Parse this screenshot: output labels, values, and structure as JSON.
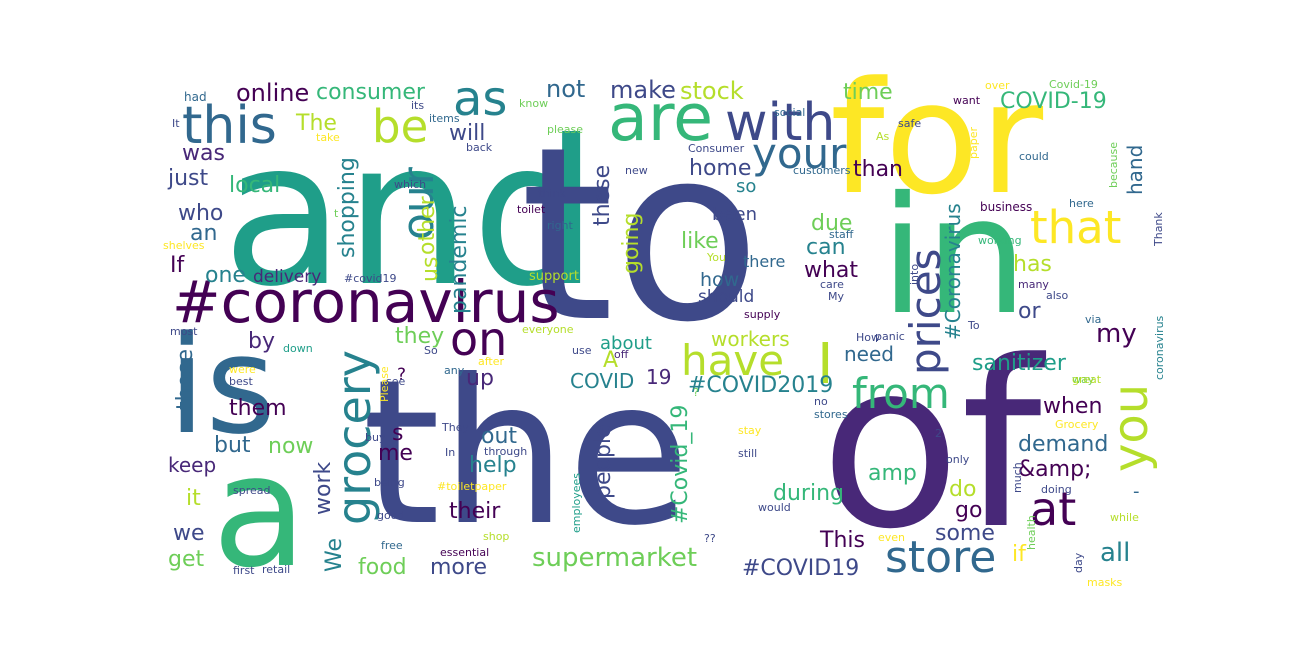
{
  "palette": [
    "#440154",
    "#482878",
    "#3e4989",
    "#31688e",
    "#26828e",
    "#1f9e89",
    "#35b779",
    "#6ece58",
    "#b5de2b",
    "#fde725"
  ],
  "words": [
    {
      "text": "and",
      "color": "#1f9e89"
    },
    {
      "text": "to",
      "color": "#3e4989"
    },
    {
      "text": "for",
      "color": "#fde725"
    },
    {
      "text": "the",
      "color": "#3e4989"
    },
    {
      "text": "of",
      "color": "#482878"
    },
    {
      "text": "in",
      "color": "#35b779"
    },
    {
      "text": "is",
      "color": "#31688e"
    },
    {
      "text": "a",
      "color": "#35b779"
    },
    {
      "text": "#coronavirus",
      "color": "#440154"
    },
    {
      "text": "are",
      "color": "#35b779"
    },
    {
      "text": "this",
      "color": "#31688e"
    },
    {
      "text": "with",
      "color": "#3e4989"
    },
    {
      "text": "as",
      "color": "#26828e"
    },
    {
      "text": "be",
      "color": "#b5de2b"
    },
    {
      "text": "your",
      "color": "#31688e"
    },
    {
      "text": "our",
      "color": "#26828e"
    },
    {
      "text": "that",
      "color": "#fde725"
    },
    {
      "text": "on",
      "color": "#440154"
    },
    {
      "text": "grocery",
      "color": "#26828e"
    },
    {
      "text": "prices",
      "color": "#3e4989"
    },
    {
      "text": "have",
      "color": "#b5de2b"
    },
    {
      "text": "I",
      "color": "#b5de2b"
    },
    {
      "text": "from",
      "color": "#35b779"
    },
    {
      "text": "you",
      "color": "#b5de2b"
    },
    {
      "text": "at",
      "color": "#440154"
    },
    {
      "text": "store",
      "color": "#31688e"
    },
    {
      "text": "online",
      "color": "#440154"
    },
    {
      "text": "consumer",
      "color": "#35b779"
    },
    {
      "text": "not",
      "color": "#31688e"
    },
    {
      "text": "make",
      "color": "#3e4989"
    },
    {
      "text": "stock",
      "color": "#b5de2b"
    },
    {
      "text": "time",
      "color": "#6ece58"
    },
    {
      "text": "COVID-19",
      "color": "#35b779"
    },
    {
      "text": "will",
      "color": "#3e4989"
    },
    {
      "text": "The",
      "color": "#b5de2b"
    },
    {
      "text": "was",
      "color": "#482878"
    },
    {
      "text": "just",
      "color": "#3e4989"
    },
    {
      "text": "local",
      "color": "#35b779"
    },
    {
      "text": "shopping",
      "color": "#26828e"
    },
    {
      "text": "other",
      "color": "#b5de2b"
    },
    {
      "text": "these",
      "color": "#3e4989"
    },
    {
      "text": "home",
      "color": "#3e4989"
    },
    {
      "text": "so",
      "color": "#26828e"
    },
    {
      "text": "than",
      "color": "#440154"
    },
    {
      "text": "#Coronavirus",
      "color": "#26828e"
    },
    {
      "text": "hand",
      "color": "#31688e"
    },
    {
      "text": "who",
      "color": "#3e4989"
    },
    {
      "text": "an",
      "color": "#31688e"
    },
    {
      "text": "pandemic",
      "color": "#26828e"
    },
    {
      "text": "going",
      "color": "#b5de2b"
    },
    {
      "text": "been",
      "color": "#3e4989"
    },
    {
      "text": "like",
      "color": "#6ece58"
    },
    {
      "text": "due",
      "color": "#6ece58"
    },
    {
      "text": "can",
      "color": "#26828e"
    },
    {
      "text": "what",
      "color": "#440154"
    },
    {
      "text": "has",
      "color": "#b5de2b"
    },
    {
      "text": "If",
      "color": "#440154"
    },
    {
      "text": "one",
      "color": "#26828e"
    },
    {
      "text": "delivery",
      "color": "#482878"
    },
    {
      "text": "us",
      "color": "#b5de2b"
    },
    {
      "text": "how",
      "color": "#31688e"
    },
    {
      "text": "there",
      "color": "#31688e"
    },
    {
      "text": "should",
      "color": "#3e4989"
    },
    {
      "text": "or",
      "color": "#3e4989"
    },
    {
      "text": "my",
      "color": "#440154"
    },
    {
      "text": "by",
      "color": "#482878"
    },
    {
      "text": "they",
      "color": "#6ece58"
    },
    {
      "text": "about",
      "color": "#1f9e89"
    },
    {
      "text": "workers",
      "color": "#b5de2b"
    },
    {
      "text": "need",
      "color": "#31688e"
    },
    {
      "text": "sanitizer",
      "color": "#1f9e89"
    },
    {
      "text": "those",
      "color": "#31688e"
    },
    {
      "text": "them",
      "color": "#440154"
    },
    {
      "text": "up",
      "color": "#482878"
    },
    {
      "text": "A",
      "color": "#b5de2b"
    },
    {
      "text": "COVID",
      "color": "#26828e"
    },
    {
      "text": "19",
      "color": "#482878"
    },
    {
      "text": "#COVID2019",
      "color": "#26828e"
    },
    {
      "text": "when",
      "color": "#440154"
    },
    {
      "text": "s",
      "color": "#440154"
    },
    {
      "text": "out",
      "color": "#31688e"
    },
    {
      "text": "but",
      "color": "#31688e"
    },
    {
      "text": "now",
      "color": "#6ece58"
    },
    {
      "text": "me",
      "color": "#440154"
    },
    {
      "text": "help",
      "color": "#26828e"
    },
    {
      "text": "people",
      "color": "#3e4989"
    },
    {
      "text": "#Covid_19",
      "color": "#35b779"
    },
    {
      "text": "demand",
      "color": "#31688e"
    },
    {
      "text": "&amp;",
      "color": "#440154"
    },
    {
      "text": "keep",
      "color": "#482878"
    },
    {
      "text": "amp",
      "color": "#35b779"
    },
    {
      "text": "it",
      "color": "#b5de2b"
    },
    {
      "text": "work",
      "color": "#3e4989"
    },
    {
      "text": "do",
      "color": "#b5de2b"
    },
    {
      "text": "during",
      "color": "#35b779"
    },
    {
      "text": "their",
      "color": "#440154"
    },
    {
      "text": "go",
      "color": "#440154"
    },
    {
      "text": "we",
      "color": "#3e4989"
    },
    {
      "text": "We",
      "color": "#26828e"
    },
    {
      "text": "some",
      "color": "#3e4989"
    },
    {
      "text": "This",
      "color": "#440154"
    },
    {
      "text": "all",
      "color": "#26828e"
    },
    {
      "text": "if",
      "color": "#fde725"
    },
    {
      "text": "get",
      "color": "#6ece58"
    },
    {
      "text": "food",
      "color": "#6ece58"
    },
    {
      "text": "more",
      "color": "#3e4989"
    },
    {
      "text": "supermarket",
      "color": "#6ece58"
    },
    {
      "text": "#COVID19",
      "color": "#3e4989"
    },
    {
      "text": "-",
      "color": "#31688e"
    },
    {
      "text": "?",
      "color": "#440154"
    },
    {
      "text": "had",
      "color": "#31688e"
    },
    {
      "text": "It",
      "color": "#3e4989"
    },
    {
      "text": "its",
      "color": "#3e4989"
    },
    {
      "text": "items",
      "color": "#31688e"
    },
    {
      "text": "take",
      "color": "#fde725"
    },
    {
      "text": "back",
      "color": "#3e4989"
    },
    {
      "text": "please",
      "color": "#6ece58"
    },
    {
      "text": "know",
      "color": "#6ece58"
    },
    {
      "text": "social",
      "color": "#31688e"
    },
    {
      "text": "over",
      "color": "#fde725"
    },
    {
      "text": "Covid-19",
      "color": "#6ece58"
    },
    {
      "text": "want",
      "color": "#440154"
    },
    {
      "text": "safe",
      "color": "#3e4989"
    },
    {
      "text": "As",
      "color": "#b5de2b"
    },
    {
      "text": "Consumer",
      "color": "#3e4989"
    },
    {
      "text": "paper",
      "color": "#fde725"
    },
    {
      "text": "could",
      "color": "#31688e"
    },
    {
      "text": "because",
      "color": "#6ece58"
    },
    {
      "text": "new",
      "color": "#3e4989"
    },
    {
      "text": "customers",
      "color": "#31688e"
    },
    {
      "text": "which",
      "color": "#3e4989"
    },
    {
      "text": "think",
      "color": "#3e4989"
    },
    {
      "text": "toilet",
      "color": "#440154"
    },
    {
      "text": "right",
      "color": "#31688e"
    },
    {
      "text": "shelves",
      "color": "#fde725"
    },
    {
      "text": "t",
      "color": "#6ece58"
    },
    {
      "text": "business",
      "color": "#440154"
    },
    {
      "text": "here",
      "color": "#31688e"
    },
    {
      "text": "working",
      "color": "#35b779"
    },
    {
      "text": "Thank",
      "color": "#3e4989"
    },
    {
      "text": "staff",
      "color": "#31688e"
    },
    {
      "text": "#covid19",
      "color": "#3e4989"
    },
    {
      "text": "support",
      "color": "#b5de2b"
    },
    {
      "text": "You",
      "color": "#b5de2b"
    },
    {
      "text": "care",
      "color": "#3e4989"
    },
    {
      "text": "My",
      "color": "#3e4989"
    },
    {
      "text": "supply",
      "color": "#440154"
    },
    {
      "text": "into",
      "color": "#3e4989"
    },
    {
      "text": "many",
      "color": "#482878"
    },
    {
      "text": "also",
      "color": "#3e4989"
    },
    {
      "text": "via",
      "color": "#31688e"
    },
    {
      "text": "coronavirus",
      "color": "#26828e"
    },
    {
      "text": "most",
      "color": "#3e4989"
    },
    {
      "text": "everyone",
      "color": "#b5de2b"
    },
    {
      "text": "How",
      "color": "#3e4989"
    },
    {
      "text": "panic",
      "color": "#3e4989"
    },
    {
      "text": "To",
      "color": "#3e4989"
    },
    {
      "text": "down",
      "color": "#1f9e89"
    },
    {
      "text": "So",
      "color": "#3e4989"
    },
    {
      "text": "off",
      "color": "#482878"
    },
    {
      "text": "use",
      "color": "#3e4989"
    },
    {
      "text": "after",
      "color": "#fde725"
    },
    {
      "text": "were",
      "color": "#fde725"
    },
    {
      "text": "best",
      "color": "#3e4989"
    },
    {
      "text": "Please",
      "color": "#fde725"
    },
    {
      "text": "see",
      "color": "#3e4989"
    },
    {
      "text": "any",
      "color": "#31688e"
    },
    {
      "text": "?",
      "color": "#6ece58"
    },
    {
      "text": "way",
      "color": "#6ece58"
    },
    {
      "text": "great",
      "color": "#b5de2b"
    },
    {
      "text": "no",
      "color": "#3e4989"
    },
    {
      "text": "stores",
      "color": "#31688e"
    },
    {
      "text": "buy",
      "color": "#3e4989"
    },
    {
      "text": "They",
      "color": "#3e4989"
    },
    {
      "text": "stay",
      "color": "#fde725"
    },
    {
      "text": "2",
      "color": "#3e4989"
    },
    {
      "text": "Grocery",
      "color": "#fde725"
    },
    {
      "text": "In",
      "color": "#3e4989"
    },
    {
      "text": "through",
      "color": "#3e4989"
    },
    {
      "text": "still",
      "color": "#3e4989"
    },
    {
      "text": "only",
      "color": "#3e4989"
    },
    {
      "text": "being",
      "color": "#3e4989"
    },
    {
      "text": "#toiletpaper",
      "color": "#fde725"
    },
    {
      "text": "spread",
      "color": "#3e4989"
    },
    {
      "text": "employees",
      "color": "#1f9e89"
    },
    {
      "text": "much",
      "color": "#3e4989"
    },
    {
      "text": "doing",
      "color": "#3e4989"
    },
    {
      "text": "good",
      "color": "#3e4989"
    },
    {
      "text": "would",
      "color": "#3e4989"
    },
    {
      "text": "health",
      "color": "#6ece58"
    },
    {
      "text": "while",
      "color": "#b5de2b"
    },
    {
      "text": "free",
      "color": "#31688e"
    },
    {
      "text": "shop",
      "color": "#b5de2b"
    },
    {
      "text": "??",
      "color": "#3e4989"
    },
    {
      "text": "even",
      "color": "#fde725"
    },
    {
      "text": "essential",
      "color": "#440154"
    },
    {
      "text": "day",
      "color": "#3e4989"
    },
    {
      "text": "first",
      "color": "#3e4989"
    },
    {
      "text": "retail",
      "color": "#3e4989"
    },
    {
      "text": "masks",
      "color": "#fde725"
    }
  ]
}
